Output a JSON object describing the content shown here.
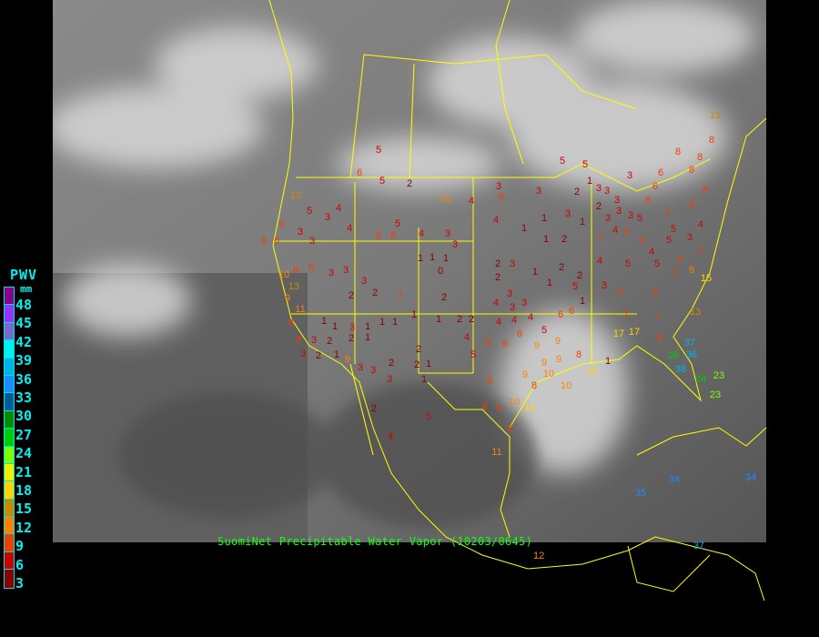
{
  "legend": {
    "title": "PWV",
    "unit": "mm",
    "labels": [
      "48",
      "45",
      "42",
      "39",
      "36",
      "33",
      "30",
      "27",
      "24",
      "21",
      "18",
      "15",
      "12",
      "9",
      "6",
      "3"
    ],
    "colors": [
      "#8b008b",
      "#9932ff",
      "#7b68cc",
      "#00f0f0",
      "#00b4e6",
      "#1e8cff",
      "#005a96",
      "#008c00",
      "#00cd00",
      "#7cff00",
      "#f0f000",
      "#ffd200",
      "#c88a00",
      "#ff8000",
      "#f04000",
      "#d00000",
      "#8b0000"
    ]
  },
  "caption": "SuomiNet Precipitable Water Vapor (10203/0645)",
  "caption_overlap_value": "12",
  "overlay_colors": {
    "borders": "#ffff00",
    "caption": "#10ff10"
  },
  "station_values": [
    5,
    6,
    5,
    2,
    10,
    4,
    3,
    6,
    3,
    5,
    5,
    3,
    8,
    8,
    13,
    13,
    5,
    4,
    4,
    3,
    6,
    3,
    6,
    3,
    3,
    3,
    2,
    2,
    7,
    4,
    3,
    1,
    1,
    1,
    3,
    5,
    6,
    6,
    2,
    0,
    4,
    1,
    1,
    1,
    2,
    2,
    3,
    2,
    1,
    2,
    2,
    4,
    1,
    5,
    3,
    6,
    3,
    3,
    3,
    4,
    4,
    4,
    4,
    5,
    6,
    6,
    1,
    1,
    1,
    2,
    2,
    1,
    1,
    1,
    1,
    1,
    3,
    1,
    2,
    2,
    3,
    3,
    1,
    2,
    9,
    3,
    2,
    3,
    3,
    2,
    1,
    2,
    4,
    5,
    6,
    6,
    6,
    9,
    9,
    8,
    9,
    9,
    9,
    10,
    8,
    10,
    8,
    6,
    8,
    10,
    15,
    6,
    11,
    2,
    4,
    5,
    1,
    15,
    1,
    17,
    7,
    17,
    7,
    8,
    37,
    26,
    38,
    36,
    24,
    23,
    23,
    34,
    34,
    37,
    35,
    13,
    15,
    9,
    7,
    5,
    3,
    7,
    6,
    8,
    7,
    6,
    6,
    6,
    3,
    2,
    1,
    3,
    2,
    3,
    3,
    3,
    4,
    6,
    5,
    6,
    4,
    5,
    7,
    1,
    3,
    3,
    6,
    5,
    6,
    4,
    5,
    8,
    8,
    10,
    8,
    13,
    9,
    11,
    8,
    6,
    6,
    3,
    8
  ]
}
